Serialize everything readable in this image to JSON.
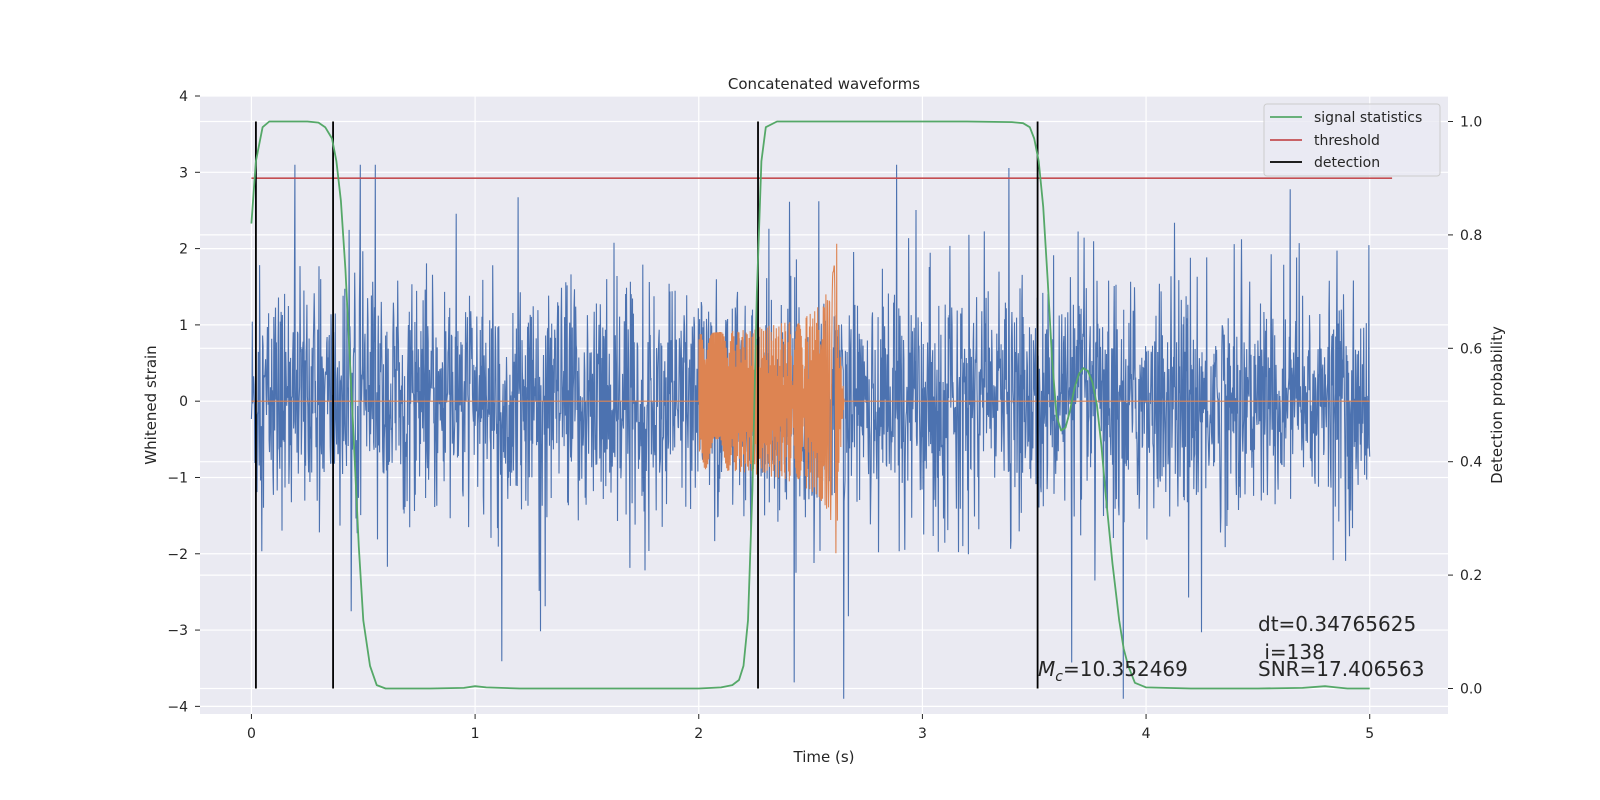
{
  "chart_data": {
    "type": "line",
    "title": "Concatenated waveforms",
    "xlabel": "Time (s)",
    "ylabel": "Whitened strain",
    "ylabel_right": "Detection probability",
    "xlim": [
      -0.23,
      5.35
    ],
    "ylim": [
      -4.1,
      4.0
    ],
    "ylim_right": [
      -0.045,
      1.045
    ],
    "xticks": [
      0,
      1,
      2,
      3,
      4,
      5
    ],
    "yticks": [
      -4,
      -3,
      -2,
      -1,
      0,
      1,
      2,
      3,
      4
    ],
    "yticks_right": [
      0.0,
      0.2,
      0.4,
      0.6,
      0.8,
      1.0
    ],
    "yticks_right_labels": [
      "0.0",
      "0.2",
      "0.4",
      "0.6",
      "0.8",
      "1.0"
    ],
    "grid": true,
    "legend_position": "top-right",
    "colors": {
      "strain": "#4c72b0",
      "template": "#dd8452",
      "signal_statistics": "#55a868",
      "threshold": "#c44e52",
      "detection": "#000000",
      "background": "#eaeaf2",
      "grid": "#ffffff"
    },
    "legend": [
      {
        "key": "signal_statistics",
        "label": "signal statistics"
      },
      {
        "key": "threshold",
        "label": "threshold"
      },
      {
        "key": "detection",
        "label": "detection"
      }
    ],
    "strain_noise": {
      "x_range": [
        0,
        5.0
      ],
      "typical_range": [
        -2.2,
        2.3
      ],
      "extreme_range": [
        -3.9,
        3.1
      ]
    },
    "template_chirp": {
      "x_start": 2.0,
      "x_merger": 2.62,
      "amplitude_start": 0.6,
      "amplitude_peak": 2.3
    },
    "threshold": {
      "x": [
        0,
        5.1
      ],
      "y": 0.9
    },
    "detections": [
      0.02,
      0.365,
      2.265,
      3.515
    ],
    "detection_range_right": [
      0.0,
      1.0
    ],
    "signal_statistics": {
      "x": [
        0.0,
        0.02,
        0.05,
        0.08,
        0.1,
        0.15,
        0.2,
        0.25,
        0.3,
        0.33,
        0.36,
        0.38,
        0.4,
        0.42,
        0.45,
        0.48,
        0.5,
        0.53,
        0.56,
        0.6,
        0.8,
        0.95,
        1.0,
        1.05,
        1.2,
        1.5,
        1.8,
        2.0,
        2.1,
        2.15,
        2.18,
        2.2,
        2.22,
        2.24,
        2.26,
        2.28,
        2.3,
        2.35,
        2.4,
        2.6,
        2.8,
        3.0,
        3.2,
        3.4,
        3.45,
        3.48,
        3.5,
        3.52,
        3.54,
        3.56,
        3.58,
        3.6,
        3.62,
        3.64,
        3.66,
        3.68,
        3.7,
        3.72,
        3.74,
        3.76,
        3.78,
        3.8,
        3.82,
        3.85,
        3.88,
        3.9,
        3.92,
        3.95,
        4.0,
        4.2,
        4.5,
        4.7,
        4.8,
        4.85,
        4.9,
        5.0
      ],
      "y": [
        0.82,
        0.93,
        0.99,
        1.0,
        1.0,
        1.0,
        1.0,
        1.0,
        0.998,
        0.99,
        0.97,
        0.93,
        0.86,
        0.74,
        0.5,
        0.25,
        0.12,
        0.04,
        0.006,
        0.0,
        0.0,
        0.001,
        0.004,
        0.002,
        0.0,
        0.0,
        0.0,
        0.0,
        0.002,
        0.006,
        0.015,
        0.04,
        0.12,
        0.35,
        0.7,
        0.93,
        0.99,
        1.0,
        1.0,
        1.0,
        1.0,
        1.0,
        1.0,
        0.999,
        0.997,
        0.99,
        0.97,
        0.93,
        0.85,
        0.72,
        0.58,
        0.48,
        0.455,
        0.46,
        0.49,
        0.53,
        0.555,
        0.565,
        0.56,
        0.54,
        0.5,
        0.43,
        0.34,
        0.22,
        0.12,
        0.07,
        0.04,
        0.01,
        0.002,
        0.0,
        0.0,
        0.001,
        0.004,
        0.002,
        0.0,
        0.0
      ]
    },
    "annotations": {
      "dt": "dt=0.34765625",
      "i": " i=138",
      "snr": "SNR=17.406563",
      "mc_prefix": "M",
      "mc_sub": "c",
      "mc_value": "=10.352469"
    }
  }
}
